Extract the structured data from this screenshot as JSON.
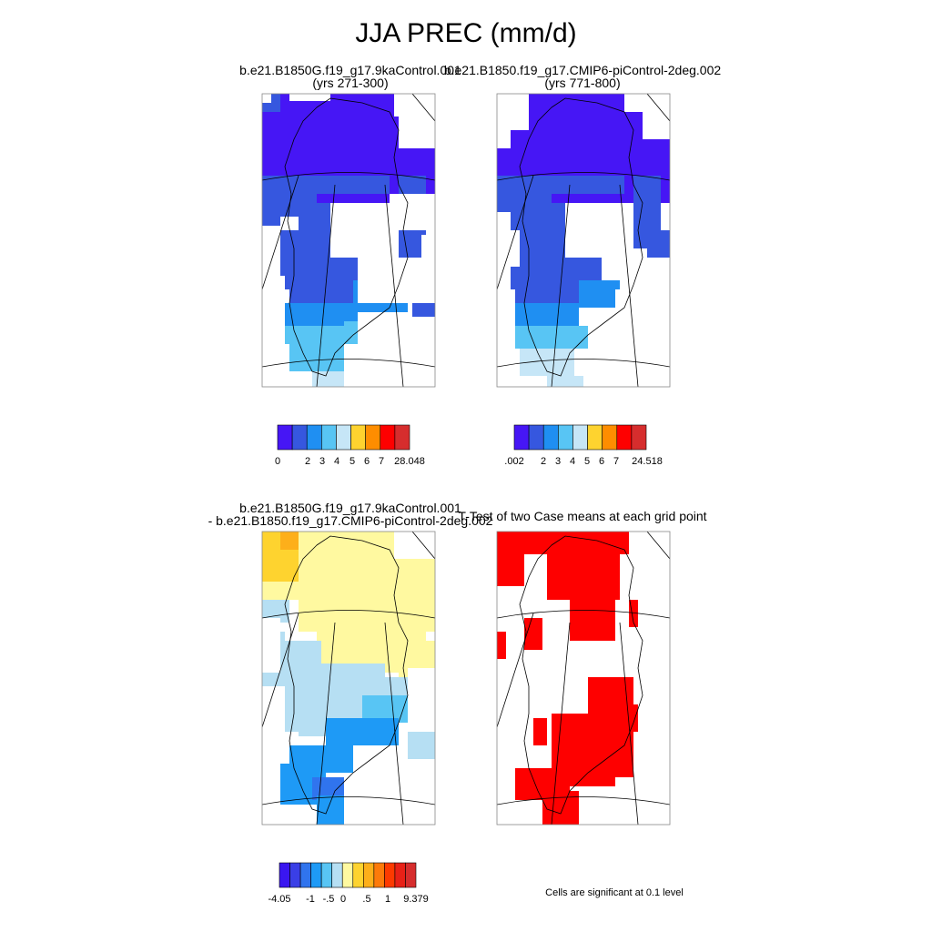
{
  "title": "JJA PREC (mm/d)",
  "panels": {
    "top_left": {
      "case": "b.e21.B1850G.f19_g17.9kaControl.001",
      "years": "(yrs 271-300)",
      "colorbar": {
        "colors": [
          "#4616f5",
          "#3657df",
          "#1f8ff2",
          "#58c5f4",
          "#c6e6f7",
          "#fed32f",
          "#fe8d00",
          "#fe0000",
          "#d62d2d"
        ],
        "labels": [
          "0",
          "2",
          "3",
          "4",
          "5",
          "6",
          "7",
          "28.048"
        ]
      }
    },
    "top_right": {
      "case": "b.e21.B1850.f19_g17.CMIP6-piControl-2deg.002",
      "years": "(yrs 771-800)",
      "colorbar": {
        "colors": [
          "#4616f5",
          "#3657df",
          "#1f8ff2",
          "#58c5f4",
          "#c6e6f7",
          "#fed32f",
          "#fe8d00",
          "#fe0000",
          "#d62d2d"
        ],
        "labels": [
          ".002",
          "2",
          "3",
          "4",
          "5",
          "6",
          "7",
          "24.518"
        ]
      }
    },
    "bottom_left": {
      "line1": "b.e21.B1850G.f19_g17.9kaControl.001",
      "line2": "- b.e21.B1850.f19_g17.CMIP6-piControl-2deg.002",
      "colorbar": {
        "colors": [
          "#3a16f0",
          "#3a3fe6",
          "#3074ee",
          "#1e9af6",
          "#58c5f4",
          "#b6dff3",
          "#fff9a0",
          "#fed32f",
          "#fdaf1a",
          "#fd7a0a",
          "#fd3a00",
          "#e82117",
          "#d62d2d"
        ],
        "labels": [
          "-4.05",
          "-1",
          "-.5",
          "0",
          ".5",
          "1",
          "9.379"
        ]
      }
    },
    "bottom_right": {
      "title": "T-Test of two Case means at each grid point",
      "note": "Cells are significant at 0.1 level",
      "colors": {
        "significant": "#fe0000"
      }
    }
  }
}
